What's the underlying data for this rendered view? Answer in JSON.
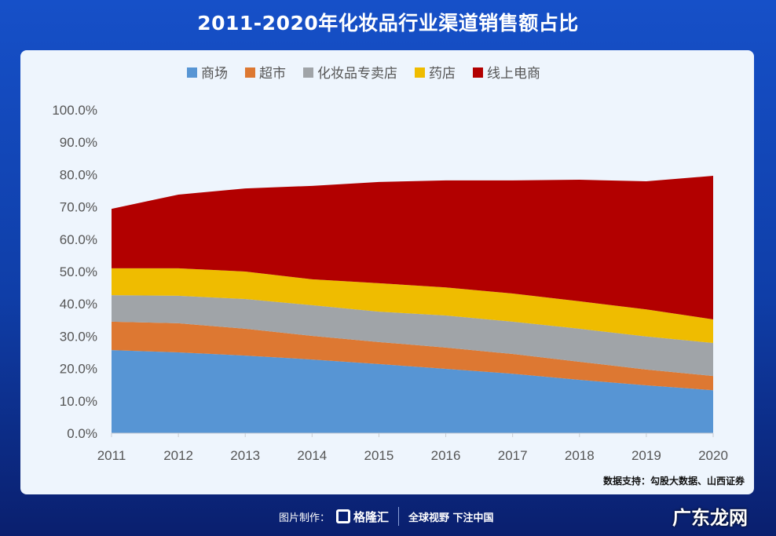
{
  "header": {
    "title": "2011-2020年化妆品行业渠道销售额占比"
  },
  "chart_data": {
    "type": "area",
    "stacked": true,
    "categories": [
      "2011",
      "2012",
      "2013",
      "2014",
      "2015",
      "2016",
      "2017",
      "2018",
      "2019",
      "2020"
    ],
    "series": [
      {
        "name": "商场",
        "color": "#5795d4",
        "values": [
          25.7,
          25.0,
          24.0,
          22.8,
          21.4,
          19.9,
          18.4,
          16.5,
          14.8,
          13.3
        ]
      },
      {
        "name": "超市",
        "color": "#dd7832",
        "values": [
          8.8,
          9.0,
          8.3,
          7.3,
          6.8,
          6.6,
          6.1,
          5.6,
          4.9,
          4.4
        ]
      },
      {
        "name": "化妆品专卖店",
        "color": "#a0a4a8",
        "values": [
          8.2,
          8.5,
          9.2,
          9.5,
          9.4,
          9.9,
          10.0,
          10.2,
          10.2,
          10.2
        ]
      },
      {
        "name": "药店",
        "color": "#efbc00",
        "values": [
          8.3,
          8.5,
          8.5,
          8.0,
          8.8,
          8.7,
          8.7,
          8.5,
          8.4,
          7.3
        ]
      },
      {
        "name": "线上电商",
        "color": "#b20000",
        "values": [
          18.4,
          22.8,
          25.7,
          28.9,
          31.3,
          33.1,
          35.0,
          37.6,
          39.6,
          44.4
        ]
      }
    ],
    "yticks": [
      "0.0%",
      "10.0%",
      "20.0%",
      "30.0%",
      "40.0%",
      "50.0%",
      "60.0%",
      "70.0%",
      "80.0%",
      "90.0%",
      "100.0%"
    ],
    "ylim": [
      0,
      100
    ],
    "legend": "top",
    "grid": false
  },
  "source": "数据支持：勾股大数据、山西证券",
  "footer": {
    "made_by": "图片制作：",
    "logo": "格隆汇",
    "slogan": "全球视野 下注中国",
    "brand": "广东龙网"
  }
}
